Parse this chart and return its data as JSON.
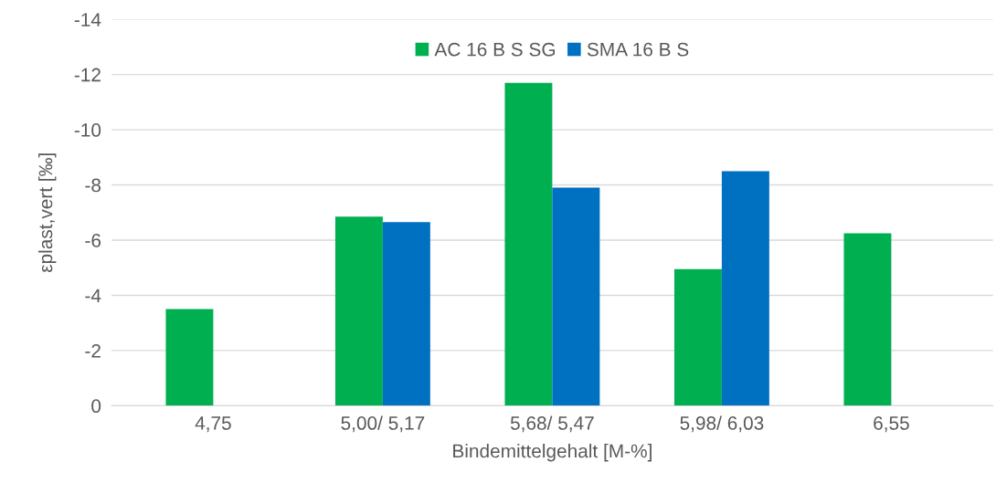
{
  "chart_data": {
    "type": "bar",
    "xlabel": "Bindemittelgehalt [M-%]",
    "ylabel": "εplast,vert [‰]",
    "categories": [
      "4,75",
      "5,00/ 5,17",
      "5,68/ 5,47",
      "5,98/ 6,03",
      "6,55"
    ],
    "series": [
      {
        "name": "AC 16 B S SG",
        "color": "#00b050",
        "values": [
          -3.5,
          -6.85,
          -11.7,
          -4.95,
          -6.25
        ]
      },
      {
        "name": "SMA 16 B S",
        "color": "#0070c0",
        "values": [
          null,
          -6.65,
          -7.9,
          -8.5,
          null
        ]
      }
    ],
    "ylim": [
      0,
      -14
    ],
    "yticks": [
      0,
      -2,
      -4,
      -6,
      -8,
      -10,
      -12,
      -14
    ],
    "grid": "y",
    "legend": "top"
  }
}
